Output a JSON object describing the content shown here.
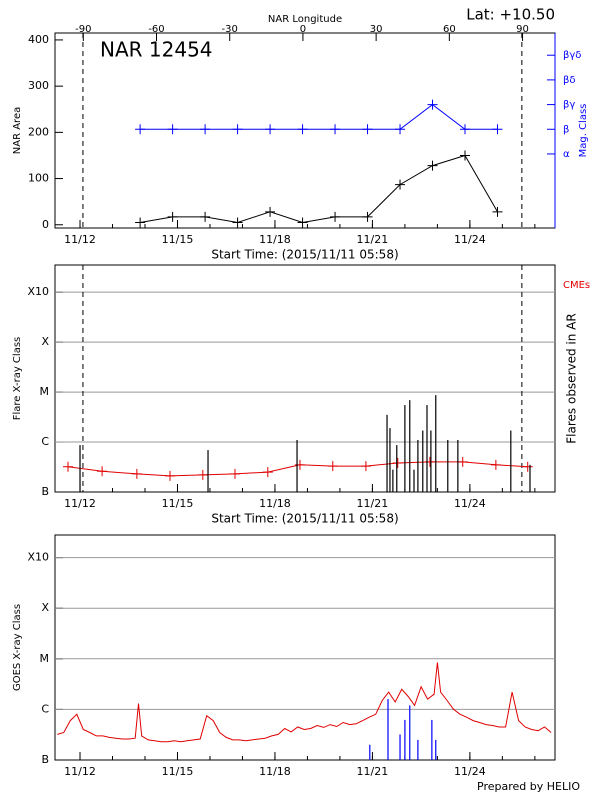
{
  "chart_data": [
    {
      "type": "line",
      "title": "NAR 12454",
      "subtitle": "Lat: +10.50",
      "x_label": "Start Time: (2015/11/11 05:58)",
      "x2_label": "NAR Longitude",
      "y_label": "NAR Area",
      "y2_label": "Mag. Class",
      "xlim": [
        11.23,
        26.62
      ],
      "xticks": [
        {
          "value": 12,
          "label": "11/12"
        },
        {
          "value": 15,
          "label": "11/15"
        },
        {
          "value": 18,
          "label": "11/18"
        },
        {
          "value": 21,
          "label": "11/21"
        },
        {
          "value": 24,
          "label": "11/24"
        }
      ],
      "x2lim": [
        -101.6,
        103.3
      ],
      "x2ticks": [
        -90,
        -60,
        -30,
        0,
        30,
        60,
        90
      ],
      "ylim": [
        -7,
        415
      ],
      "yticks": [
        0,
        100,
        200,
        300,
        400
      ],
      "y2lim": [
        0,
        7.9
      ],
      "y2ticks": [
        {
          "value": 3,
          "label": "α"
        },
        {
          "value": 4,
          "label": "β"
        },
        {
          "value": 5,
          "label": "βγ"
        },
        {
          "value": 6,
          "label": "βδ"
        },
        {
          "value": 7,
          "label": "βγδ"
        }
      ],
      "y2_color": "#0000ff",
      "limb_lines": [
        12.09,
        25.6
      ],
      "x": [
        13.85,
        14.85,
        15.85,
        16.85,
        17.85,
        18.85,
        19.85,
        20.85,
        21.85,
        22.85,
        23.85,
        24.85
      ],
      "series": [
        {
          "color": "#000000",
          "marker": "+",
          "values": [
            5,
            17,
            17,
            5,
            28,
            5,
            17,
            17,
            87,
            128,
            150,
            28
          ]
        },
        {
          "color": "#0000ff",
          "marker": "+",
          "axis": "y2",
          "values": [
            4,
            4,
            4,
            4,
            4,
            4,
            4,
            4,
            4,
            5,
            4,
            4
          ]
        }
      ]
    },
    {
      "type": "line",
      "x_label": "Start Time: (2015/11/11 05:58)",
      "y_label": "Flare X-ray Class",
      "y2_label": "Flares observed in AR",
      "xlim": [
        11.23,
        26.62
      ],
      "xticks": [
        {
          "value": 12,
          "label": "11/12"
        },
        {
          "value": 15,
          "label": "11/15"
        },
        {
          "value": 18,
          "label": "11/18"
        },
        {
          "value": 21,
          "label": "11/21"
        },
        {
          "value": 24,
          "label": "11/24"
        }
      ],
      "ylim": [
        1e-07,
        0.0035
      ],
      "log_y": true,
      "grid": true,
      "yticks": [
        {
          "value": 1e-07,
          "label": "B"
        },
        {
          "value": 1e-06,
          "label": "C"
        },
        {
          "value": 1e-05,
          "label": "M"
        },
        {
          "value": 0.0001,
          "label": "X"
        },
        {
          "value": 0.001,
          "label": "X10"
        }
      ],
      "limb_lines": [
        12.09,
        25.6
      ],
      "series": [
        {
          "name": "CMEs",
          "color": "#e00000",
          "marker": "+",
          "x": [
            11.63,
            12.68,
            13.75,
            14.77,
            15.78,
            16.77,
            17.78,
            18.77,
            19.78,
            20.8,
            21.78,
            22.77,
            23.78,
            24.8,
            25.78
          ],
          "values": [
            3.2e-07,
            2.6e-07,
            2.3e-07,
            2.1e-07,
            2.2e-07,
            2.3e-07,
            2.5e-07,
            3.5e-07,
            3.3e-07,
            3.3e-07,
            3.8e-07,
            4e-07,
            4e-07,
            3.5e-07,
            3.2e-07
          ]
        },
        {
          "style": "stem",
          "color": "#000000",
          "x": [
            12.0,
            15.94,
            18.68,
            21.45,
            21.54,
            21.63,
            21.75,
            22.0,
            22.15,
            22.28,
            22.4,
            22.55,
            22.68,
            22.8,
            22.95,
            23.32,
            23.63,
            25.26,
            25.85
          ],
          "values": [
            8.7e-07,
            6.9e-07,
            1.1e-06,
            3.5e-06,
            1.9e-06,
            2.8e-07,
            8.7e-07,
            5.5e-06,
            6.9e-06,
            2.8e-07,
            1.1e-06,
            1.7e-06,
            5.5e-06,
            1.7e-06,
            8.7e-06,
            1.1e-06,
            1.1e-06,
            1.7e-06,
            3.5e-07
          ]
        }
      ]
    },
    {
      "type": "line",
      "y_label": "GOES X-ray Class",
      "xlim": [
        11.23,
        26.62
      ],
      "xticks": [
        {
          "value": 12,
          "label": "11/12"
        },
        {
          "value": 15,
          "label": "11/15"
        },
        {
          "value": 18,
          "label": "11/18"
        },
        {
          "value": 21,
          "label": "11/21"
        },
        {
          "value": 24,
          "label": "11/24"
        }
      ],
      "ylim": [
        1e-07,
        0.0028
      ],
      "log_y": true,
      "grid": true,
      "yticks": [
        {
          "value": 1e-07,
          "label": "B"
        },
        {
          "value": 1e-06,
          "label": "C"
        },
        {
          "value": 1e-05,
          "label": "M"
        },
        {
          "value": 0.0001,
          "label": "X"
        },
        {
          "value": 0.001,
          "label": "X10"
        }
      ],
      "series": [
        {
          "color": "#e00000",
          "x": [
            11.3,
            11.5,
            11.7,
            11.9,
            12.1,
            12.3,
            12.5,
            12.7,
            12.9,
            13.1,
            13.3,
            13.5,
            13.7,
            13.8,
            13.9,
            14.1,
            14.3,
            14.5,
            14.7,
            14.9,
            15.1,
            15.3,
            15.5,
            15.7,
            15.9,
            16.1,
            16.3,
            16.5,
            16.7,
            16.9,
            17.1,
            17.3,
            17.5,
            17.7,
            17.9,
            18.1,
            18.3,
            18.5,
            18.7,
            18.9,
            19.1,
            19.3,
            19.5,
            19.7,
            19.9,
            20.1,
            20.3,
            20.5,
            20.7,
            20.9,
            21.1,
            21.3,
            21.5,
            21.7,
            21.9,
            22.1,
            22.3,
            22.5,
            22.7,
            22.9,
            23.0,
            23.1,
            23.3,
            23.5,
            23.7,
            23.9,
            24.1,
            24.3,
            24.5,
            24.7,
            24.9,
            25.1,
            25.3,
            25.5,
            25.7,
            25.9,
            26.1,
            26.3,
            26.5
          ],
          "values": [
            3.2e-07,
            3.5e-07,
            6e-07,
            8e-07,
            4e-07,
            3.5e-07,
            3e-07,
            3e-07,
            2.8e-07,
            2.7e-07,
            2.6e-07,
            2.6e-07,
            2.7e-07,
            1.3e-06,
            3e-07,
            2.5e-07,
            2.4e-07,
            2.3e-07,
            2.3e-07,
            2.4e-07,
            2.3e-07,
            2.4e-07,
            2.5e-07,
            2.6e-07,
            7.5e-07,
            6e-07,
            3.5e-07,
            2.8e-07,
            2.5e-07,
            2.5e-07,
            2.4e-07,
            2.5e-07,
            2.6e-07,
            2.7e-07,
            3e-07,
            3.2e-07,
            4.2e-07,
            3.6e-07,
            4.5e-07,
            4e-07,
            4.2e-07,
            4.8e-07,
            4.4e-07,
            5e-07,
            4.6e-07,
            5.5e-07,
            5e-07,
            5.2e-07,
            6e-07,
            7e-07,
            8e-07,
            1.5e-06,
            2.2e-06,
            1.4e-06,
            2.5e-06,
            1.8e-06,
            1.2e-06,
            2.8e-06,
            1.6e-06,
            2e-06,
            8.5e-06,
            2.2e-06,
            1.5e-06,
            1e-06,
            8e-07,
            7e-07,
            6e-07,
            5.5e-07,
            5e-07,
            4.8e-07,
            4.5e-07,
            4.5e-07,
            2.2e-06,
            6e-07,
            4.5e-07,
            4e-07,
            3.8e-07,
            4.5e-07,
            3.5e-07
          ]
        },
        {
          "style": "stem",
          "color": "#0000ff",
          "x": [
            20.92,
            21.48,
            21.85,
            22.0,
            22.15,
            22.4,
            22.83,
            22.95
          ],
          "values": [
            2e-07,
            1.6e-06,
            3.2e-07,
            6.2e-07,
            1.2e-06,
            2.5e-07,
            6.2e-07,
            2.5e-07
          ]
        }
      ]
    }
  ],
  "footer": "Prepared by HELIO"
}
